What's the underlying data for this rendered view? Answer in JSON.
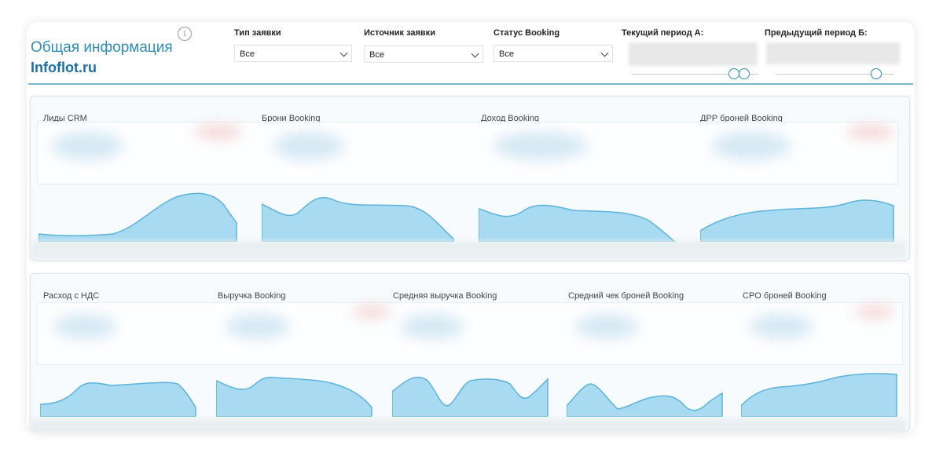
{
  "header": {
    "title": "Общая информация",
    "brand": "Infoflot.ru",
    "info_icon": "info-icon"
  },
  "filters": [
    {
      "label": "Тип заявки",
      "value": "Все"
    },
    {
      "label": "Источник заявки",
      "value": "Все"
    },
    {
      "label": "Статус Booking",
      "value": "Все"
    }
  ],
  "periods": {
    "current_label": "Текущий период А:",
    "previous_label": "Предыдущий период Б:"
  },
  "row1": [
    {
      "label": "Лиды CRM"
    },
    {
      "label": "Брони Booking"
    },
    {
      "label": "Доход Booking"
    },
    {
      "label": "ДРР броней Booking"
    }
  ],
  "row2": [
    {
      "label": "Расход с НДС"
    },
    {
      "label": "Выручка Booking"
    },
    {
      "label": "Средняя выручка Booking"
    },
    {
      "label": "Средний чек броней Booking"
    },
    {
      "label": "CPO броней Booking"
    }
  ],
  "colors": {
    "accent": "#2f8db3",
    "brand": "#1c6fa5",
    "spark_fill": "#a8daf1",
    "spark_line": "#5bb3dc"
  }
}
